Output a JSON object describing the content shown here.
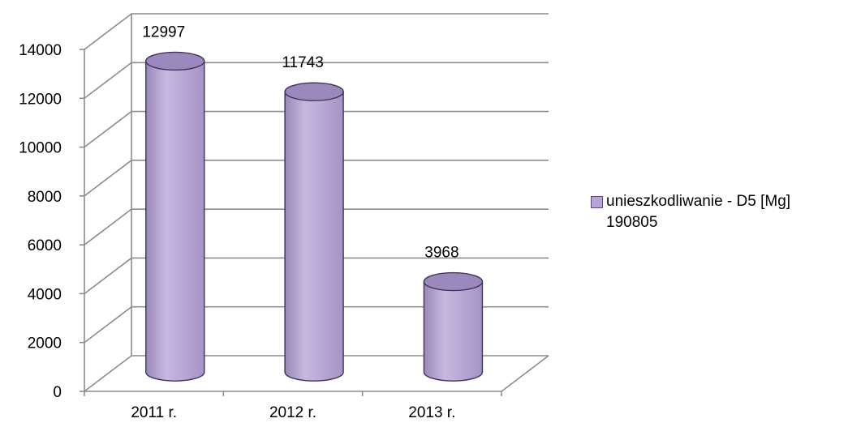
{
  "chart_data": {
    "type": "bar",
    "categories": [
      "2011 r.",
      "2012 r.",
      "2013 r."
    ],
    "series": [
      {
        "name": "unieszkodliwanie - D5 [Mg] 190805",
        "values": [
          12997,
          11743,
          3968
        ],
        "color": "#b7a5d3"
      }
    ],
    "data_labels": [
      "12997",
      "11743",
      "3968"
    ],
    "yticks": [
      "0",
      "2000",
      "4000",
      "6000",
      "8000",
      "10000",
      "12000",
      "14000"
    ],
    "ylim": [
      0,
      14000
    ],
    "grid": true,
    "legend_position": "right",
    "legend": {
      "line1": "unieszkodliwanie - D5 [Mg]",
      "line2": "190805"
    }
  }
}
